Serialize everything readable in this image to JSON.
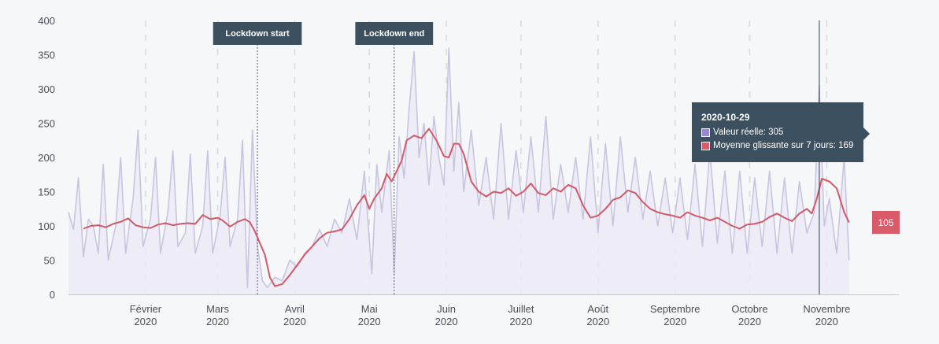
{
  "chart_data": {
    "type": "line",
    "title": "",
    "xlabel": "",
    "ylabel": "",
    "ylim": [
      0,
      400
    ],
    "xlim": [
      "2020-01-01",
      "2020-11-30"
    ],
    "yticks": [
      0,
      50,
      100,
      150,
      200,
      250,
      300,
      350,
      400
    ],
    "xticks": [
      {
        "date": "2020-02-01",
        "line1": "Février",
        "line2": "2020"
      },
      {
        "date": "2020-03-01",
        "line1": "Mars",
        "line2": "2020"
      },
      {
        "date": "2020-04-01",
        "line1": "Avril",
        "line2": "2020"
      },
      {
        "date": "2020-05-01",
        "line1": "Mai",
        "line2": "2020"
      },
      {
        "date": "2020-06-01",
        "line1": "Juin",
        "line2": "2020"
      },
      {
        "date": "2020-07-01",
        "line1": "Juillet",
        "line2": "2020"
      },
      {
        "date": "2020-08-01",
        "line1": "Août",
        "line2": "2020"
      },
      {
        "date": "2020-09-01",
        "line1": "Septembre",
        "line2": "2020"
      },
      {
        "date": "2020-10-01",
        "line1": "Octobre",
        "line2": "2020"
      },
      {
        "date": "2020-11-01",
        "line1": "Novembre",
        "line2": "2020"
      }
    ],
    "grid": "vertical dashed at month ticks",
    "annotations": [
      {
        "label": "Lockdown start",
        "date": "2020-03-17"
      },
      {
        "label": "Lockdown end",
        "date": "2020-05-11"
      }
    ],
    "series": [
      {
        "name": "Valeur réelle",
        "style": "area",
        "color": "#c9c4e0",
        "points": [
          [
            "2020-01-01",
            120
          ],
          [
            "2020-01-03",
            95
          ],
          [
            "2020-01-05",
            170
          ],
          [
            "2020-01-07",
            55
          ],
          [
            "2020-01-09",
            110
          ],
          [
            "2020-01-11",
            100
          ],
          [
            "2020-01-13",
            60
          ],
          [
            "2020-01-15",
            190
          ],
          [
            "2020-01-17",
            50
          ],
          [
            "2020-01-20",
            100
          ],
          [
            "2020-01-22",
            200
          ],
          [
            "2020-01-24",
            60
          ],
          [
            "2020-01-27",
            140
          ],
          [
            "2020-01-29",
            240
          ],
          [
            "2020-01-31",
            70
          ],
          [
            "2020-02-03",
            110
          ],
          [
            "2020-02-05",
            200
          ],
          [
            "2020-02-07",
            60
          ],
          [
            "2020-02-10",
            120
          ],
          [
            "2020-02-12",
            210
          ],
          [
            "2020-02-14",
            70
          ],
          [
            "2020-02-17",
            90
          ],
          [
            "2020-02-19",
            205
          ],
          [
            "2020-02-21",
            60
          ],
          [
            "2020-02-24",
            100
          ],
          [
            "2020-02-26",
            210
          ],
          [
            "2020-02-28",
            60
          ],
          [
            "2020-03-02",
            115
          ],
          [
            "2020-03-04",
            200
          ],
          [
            "2020-03-06",
            70
          ],
          [
            "2020-03-09",
            110
          ],
          [
            "2020-03-11",
            225
          ],
          [
            "2020-03-13",
            10
          ],
          [
            "2020-03-15",
            240
          ],
          [
            "2020-03-17",
            70
          ],
          [
            "2020-03-19",
            20
          ],
          [
            "2020-03-21",
            10
          ],
          [
            "2020-03-24",
            25
          ],
          [
            "2020-03-27",
            20
          ],
          [
            "2020-03-30",
            50
          ],
          [
            "2020-04-02",
            40
          ],
          [
            "2020-04-05",
            60
          ],
          [
            "2020-04-08",
            70
          ],
          [
            "2020-04-11",
            95
          ],
          [
            "2020-04-14",
            70
          ],
          [
            "2020-04-17",
            110
          ],
          [
            "2020-04-20",
            90
          ],
          [
            "2020-04-23",
            140
          ],
          [
            "2020-04-26",
            80
          ],
          [
            "2020-04-29",
            180
          ],
          [
            "2020-05-02",
            30
          ],
          [
            "2020-05-04",
            190
          ],
          [
            "2020-05-06",
            120
          ],
          [
            "2020-05-09",
            210
          ],
          [
            "2020-05-11",
            30
          ],
          [
            "2020-05-13",
            230
          ],
          [
            "2020-05-15",
            170
          ],
          [
            "2020-05-17",
            270
          ],
          [
            "2020-05-19",
            355
          ],
          [
            "2020-05-21",
            200
          ],
          [
            "2020-05-23",
            250
          ],
          [
            "2020-05-25",
            160
          ],
          [
            "2020-05-27",
            260
          ],
          [
            "2020-05-29",
            200
          ],
          [
            "2020-05-31",
            160
          ],
          [
            "2020-06-02",
            360
          ],
          [
            "2020-06-04",
            180
          ],
          [
            "2020-06-06",
            280
          ],
          [
            "2020-06-08",
            150
          ],
          [
            "2020-06-11",
            240
          ],
          [
            "2020-06-14",
            130
          ],
          [
            "2020-06-17",
            200
          ],
          [
            "2020-06-20",
            110
          ],
          [
            "2020-06-23",
            250
          ],
          [
            "2020-06-26",
            110
          ],
          [
            "2020-06-29",
            210
          ],
          [
            "2020-07-02",
            120
          ],
          [
            "2020-07-05",
            230
          ],
          [
            "2020-07-08",
            120
          ],
          [
            "2020-07-11",
            260
          ],
          [
            "2020-07-14",
            110
          ],
          [
            "2020-07-17",
            190
          ],
          [
            "2020-07-20",
            120
          ],
          [
            "2020-07-23",
            200
          ],
          [
            "2020-07-26",
            110
          ],
          [
            "2020-07-29",
            230
          ],
          [
            "2020-08-01",
            90
          ],
          [
            "2020-08-04",
            220
          ],
          [
            "2020-08-07",
            100
          ],
          [
            "2020-08-10",
            230
          ],
          [
            "2020-08-13",
            120
          ],
          [
            "2020-08-16",
            200
          ],
          [
            "2020-08-19",
            110
          ],
          [
            "2020-08-22",
            180
          ],
          [
            "2020-08-25",
            100
          ],
          [
            "2020-08-28",
            170
          ],
          [
            "2020-08-31",
            90
          ],
          [
            "2020-09-03",
            170
          ],
          [
            "2020-09-06",
            80
          ],
          [
            "2020-09-09",
            190
          ],
          [
            "2020-09-12",
            70
          ],
          [
            "2020-09-15",
            210
          ],
          [
            "2020-09-18",
            75
          ],
          [
            "2020-09-21",
            180
          ],
          [
            "2020-09-24",
            60
          ],
          [
            "2020-09-27",
            180
          ],
          [
            "2020-09-30",
            60
          ],
          [
            "2020-10-03",
            170
          ],
          [
            "2020-10-06",
            70
          ],
          [
            "2020-10-09",
            180
          ],
          [
            "2020-10-12",
            60
          ],
          [
            "2020-10-15",
            170
          ],
          [
            "2020-10-18",
            60
          ],
          [
            "2020-10-21",
            165
          ],
          [
            "2020-10-24",
            90
          ],
          [
            "2020-10-27",
            120
          ],
          [
            "2020-10-29",
            305
          ],
          [
            "2020-10-31",
            100
          ],
          [
            "2020-11-02",
            140
          ],
          [
            "2020-11-05",
            60
          ],
          [
            "2020-11-08",
            200
          ],
          [
            "2020-11-10",
            50
          ]
        ]
      },
      {
        "name": "Moyenne glissante sur 7 jours",
        "style": "line",
        "color": "#d05a68",
        "points": [
          [
            "2020-01-07",
            96
          ],
          [
            "2020-01-10",
            100
          ],
          [
            "2020-01-13",
            101
          ],
          [
            "2020-01-16",
            98
          ],
          [
            "2020-01-19",
            103
          ],
          [
            "2020-01-22",
            106
          ],
          [
            "2020-01-25",
            111
          ],
          [
            "2020-01-28",
            101
          ],
          [
            "2020-01-31",
            98
          ],
          [
            "2020-02-03",
            97
          ],
          [
            "2020-02-06",
            102
          ],
          [
            "2020-02-09",
            104
          ],
          [
            "2020-02-12",
            101
          ],
          [
            "2020-02-15",
            103
          ],
          [
            "2020-02-18",
            104
          ],
          [
            "2020-02-21",
            103
          ],
          [
            "2020-02-24",
            116
          ],
          [
            "2020-02-27",
            110
          ],
          [
            "2020-03-01",
            112
          ],
          [
            "2020-03-03",
            108
          ],
          [
            "2020-03-06",
            99
          ],
          [
            "2020-03-09",
            106
          ],
          [
            "2020-03-12",
            110
          ],
          [
            "2020-03-14",
            105
          ],
          [
            "2020-03-16",
            92
          ],
          [
            "2020-03-18",
            75
          ],
          [
            "2020-03-20",
            58
          ],
          [
            "2020-03-22",
            25
          ],
          [
            "2020-03-24",
            12
          ],
          [
            "2020-03-27",
            15
          ],
          [
            "2020-03-30",
            28
          ],
          [
            "2020-04-02",
            43
          ],
          [
            "2020-04-05",
            58
          ],
          [
            "2020-04-08",
            70
          ],
          [
            "2020-04-11",
            82
          ],
          [
            "2020-04-14",
            90
          ],
          [
            "2020-04-17",
            92
          ],
          [
            "2020-04-20",
            95
          ],
          [
            "2020-04-23",
            110
          ],
          [
            "2020-04-26",
            130
          ],
          [
            "2020-04-29",
            145
          ],
          [
            "2020-05-01",
            125
          ],
          [
            "2020-05-03",
            140
          ],
          [
            "2020-05-06",
            155
          ],
          [
            "2020-05-08",
            176
          ],
          [
            "2020-05-10",
            165
          ],
          [
            "2020-05-12",
            180
          ],
          [
            "2020-05-14",
            195
          ],
          [
            "2020-05-16",
            225
          ],
          [
            "2020-05-19",
            232
          ],
          [
            "2020-05-22",
            228
          ],
          [
            "2020-05-25",
            242
          ],
          [
            "2020-05-28",
            225
          ],
          [
            "2020-05-31",
            202
          ],
          [
            "2020-06-02",
            200
          ],
          [
            "2020-06-04",
            220
          ],
          [
            "2020-06-06",
            220
          ],
          [
            "2020-06-08",
            205
          ],
          [
            "2020-06-11",
            165
          ],
          [
            "2020-06-14",
            150
          ],
          [
            "2020-06-17",
            143
          ],
          [
            "2020-06-20",
            150
          ],
          [
            "2020-06-23",
            148
          ],
          [
            "2020-06-26",
            155
          ],
          [
            "2020-06-29",
            144
          ],
          [
            "2020-07-02",
            150
          ],
          [
            "2020-07-05",
            162
          ],
          [
            "2020-07-08",
            148
          ],
          [
            "2020-07-11",
            145
          ],
          [
            "2020-07-14",
            155
          ],
          [
            "2020-07-17",
            150
          ],
          [
            "2020-07-20",
            160
          ],
          [
            "2020-07-23",
            155
          ],
          [
            "2020-07-26",
            130
          ],
          [
            "2020-07-29",
            112
          ],
          [
            "2020-08-01",
            115
          ],
          [
            "2020-08-04",
            125
          ],
          [
            "2020-08-07",
            138
          ],
          [
            "2020-08-10",
            142
          ],
          [
            "2020-08-13",
            152
          ],
          [
            "2020-08-16",
            148
          ],
          [
            "2020-08-19",
            135
          ],
          [
            "2020-08-22",
            125
          ],
          [
            "2020-08-25",
            120
          ],
          [
            "2020-08-28",
            117
          ],
          [
            "2020-08-31",
            115
          ],
          [
            "2020-09-03",
            112
          ],
          [
            "2020-09-06",
            120
          ],
          [
            "2020-09-09",
            115
          ],
          [
            "2020-09-12",
            112
          ],
          [
            "2020-09-15",
            108
          ],
          [
            "2020-09-18",
            112
          ],
          [
            "2020-09-21",
            106
          ],
          [
            "2020-09-24",
            100
          ],
          [
            "2020-09-27",
            96
          ],
          [
            "2020-09-30",
            102
          ],
          [
            "2020-10-03",
            103
          ],
          [
            "2020-10-06",
            106
          ],
          [
            "2020-10-09",
            113
          ],
          [
            "2020-10-12",
            118
          ],
          [
            "2020-10-15",
            112
          ],
          [
            "2020-10-18",
            107
          ],
          [
            "2020-10-21",
            118
          ],
          [
            "2020-10-24",
            125
          ],
          [
            "2020-10-26",
            118
          ],
          [
            "2020-10-28",
            140
          ],
          [
            "2020-10-30",
            169
          ],
          [
            "2020-11-02",
            165
          ],
          [
            "2020-11-05",
            155
          ],
          [
            "2020-11-08",
            120
          ],
          [
            "2020-11-10",
            105
          ]
        ]
      }
    ]
  },
  "tooltip": {
    "date": "2020-10-29",
    "actual_label": "Valeur réelle: 305",
    "avg_label": "Moyenne glissante sur 7 jours: 169",
    "actual_swatch_color": "#9b88c8",
    "avg_swatch_color": "#d95a68"
  },
  "last_value_badge": "105"
}
